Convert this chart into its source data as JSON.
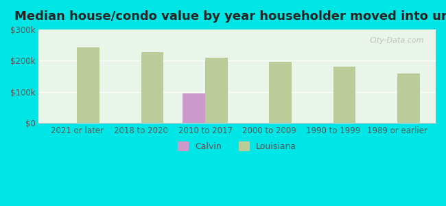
{
  "title": "Median house/condo value by year householder moved into unit",
  "categories": [
    "2021 or later",
    "2018 to 2020",
    "2010 to 2017",
    "2000 to 2009",
    "1990 to 1999",
    "1989 or earlier"
  ],
  "calvin_values": [
    0,
    0,
    95000,
    0,
    0,
    0
  ],
  "louisiana_values": [
    242000,
    228000,
    210000,
    196000,
    182000,
    160000
  ],
  "calvin_color": "#cc99cc",
  "louisiana_color": "#bbcc99",
  "background_color": "#00e5e5",
  "plot_bg_top": "#e8f5e8",
  "plot_bg_bottom": "#f5fff5",
  "ylim": [
    0,
    300000
  ],
  "yticks": [
    0,
    100000,
    200000,
    300000
  ],
  "ytick_labels": [
    "$0",
    "$100k",
    "$200k",
    "$300k"
  ],
  "bar_width": 0.35,
  "title_fontsize": 13,
  "tick_fontsize": 8.5,
  "legend_labels": [
    "Calvin",
    "Louisiana"
  ],
  "watermark": "City-Data.com"
}
